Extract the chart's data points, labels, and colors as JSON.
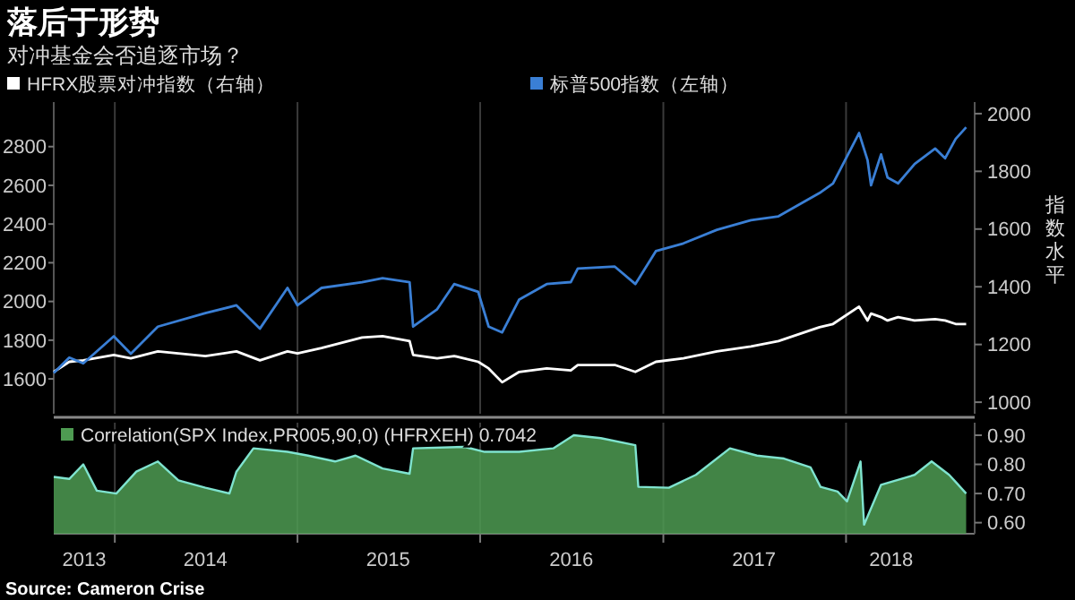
{
  "chart_data": [
    {
      "type": "line",
      "title": "落后于形势",
      "subtitle": "对冲基金会否追逐市场？",
      "y2label": "指数水平",
      "legend": "top",
      "grid": "x",
      "tick_labels": "y",
      "x": [
        "2013-09-01",
        "2013-10-02",
        "2013-10-30",
        "2013-12-30",
        "2014-02-02",
        "2014-03-28",
        "2014-07-01",
        "2014-09-01",
        "2014-10-18",
        "2014-12-12",
        "2015-01-01",
        "2015-02-18",
        "2015-05-10",
        "2015-06-20",
        "2015-08-13",
        "2015-08-20",
        "2015-10-07",
        "2015-11-10",
        "2015-12-28",
        "2016-01-18",
        "2016-02-14",
        "2016-03-19",
        "2016-05-13",
        "2016-06-30",
        "2016-07-14",
        "2016-09-26",
        "2016-11-06",
        "2016-12-17",
        "2017-02-10",
        "2017-04-18",
        "2017-06-25",
        "2017-08-19",
        "2017-11-09",
        "2017-12-06",
        "2018-01-27",
        "2018-02-13",
        "2018-02-20",
        "2018-03-12",
        "2018-03-25",
        "2018-04-15",
        "2018-05-18",
        "2018-06-28",
        "2018-07-18",
        "2018-08-08",
        "2018-08-29"
      ],
      "xlim": [
        "2013-09-01",
        "2018-09-15"
      ],
      "xticks": [
        {
          "value": "2014-01-01",
          "label": null
        },
        {
          "value": "2015-01-01",
          "label": null
        },
        {
          "value": "2016-01-01",
          "label": null
        },
        {
          "value": "2017-01-01",
          "label": null
        },
        {
          "value": "2018-01-01",
          "label": null
        }
      ],
      "ylim": [
        1420,
        3030
      ],
      "yticks": [
        1600,
        1800,
        2000,
        2200,
        2400,
        2600,
        2800
      ],
      "y2lim": [
        960,
        2040
      ],
      "y2ticks": [
        1000,
        1200,
        1400,
        1600,
        1800,
        2000
      ],
      "series": [
        {
          "name": "HFRX股票对冲指数（右轴）",
          "color": "#ffffff",
          "axis": "y2",
          "values": [
            1105,
            1140,
            1145,
            1164,
            1152,
            1176,
            1160,
            1176,
            1145,
            1176,
            1169,
            1188,
            1224,
            1229,
            1212,
            1164,
            1152,
            1160,
            1140,
            1117,
            1069,
            1105,
            1117,
            1110,
            1129,
            1129,
            1105,
            1140,
            1152,
            1176,
            1193,
            1212,
            1260,
            1271,
            1331,
            1283,
            1307,
            1295,
            1283,
            1295,
            1283,
            1288,
            1283,
            1271,
            1271
          ]
        },
        {
          "name": "标普500指数（左轴）",
          "color": "#3a7fd5",
          "axis": "y",
          "values": [
            1630,
            1710,
            1680,
            1820,
            1730,
            1870,
            1940,
            1980,
            1860,
            2070,
            1980,
            2070,
            2100,
            2120,
            2100,
            1870,
            1960,
            2090,
            2050,
            1870,
            1840,
            2010,
            2090,
            2100,
            2170,
            2180,
            2090,
            2260,
            2300,
            2370,
            2420,
            2440,
            2560,
            2610,
            2870,
            2730,
            2600,
            2760,
            2640,
            2610,
            2710,
            2790,
            2740,
            2840,
            2900
          ]
        }
      ]
    },
    {
      "type": "area",
      "legend": "top left",
      "grid": "x",
      "annotations": [
        "Source: Cameron Crise"
      ],
      "xlim": [
        "2013-09-01",
        "2018-09-15"
      ],
      "xticks": [
        {
          "value": "2013-11-01",
          "label": "2013"
        },
        {
          "value": "2014-01-01",
          "label": null
        },
        {
          "value": "2014-07-01",
          "label": "2014"
        },
        {
          "value": "2015-01-01",
          "label": null
        },
        {
          "value": "2015-07-01",
          "label": "2015"
        },
        {
          "value": "2016-01-01",
          "label": null
        },
        {
          "value": "2016-07-01",
          "label": "2016"
        },
        {
          "value": "2017-01-01",
          "label": null
        },
        {
          "value": "2017-07-01",
          "label": "2017"
        },
        {
          "value": "2018-01-01",
          "label": null
        },
        {
          "value": "2018-04-01",
          "label": "2018"
        }
      ],
      "y2lim": [
        0.562,
        0.943
      ],
      "y2ticks": [
        {
          "value": 0.6,
          "label": "0.60"
        },
        {
          "value": 0.7,
          "label": "0.70"
        },
        {
          "value": 0.8,
          "label": "0.80"
        },
        {
          "value": 0.9,
          "label": "0.90"
        }
      ],
      "series": [
        {
          "name": "Correlation(SPX Index,PR005,90,0) (HFRXEH) 0.7042",
          "color": "#4e9b52",
          "axis": "y2",
          "x": [
            "2013-09-01",
            "2013-10-02",
            "2013-10-30",
            "2013-11-26",
            "2014-01-04",
            "2014-02-13",
            "2014-03-28",
            "2014-05-08",
            "2014-07-01",
            "2014-08-18",
            "2014-09-01",
            "2014-10-05",
            "2014-12-12",
            "2015-01-22",
            "2015-03-17",
            "2015-04-27",
            "2015-06-20",
            "2015-08-13",
            "2015-08-20",
            "2015-12-01",
            "2016-01-10",
            "2016-03-19",
            "2016-05-26",
            "2016-07-06",
            "2016-08-29",
            "2016-11-06",
            "2016-11-12",
            "2017-01-12",
            "2017-03-07",
            "2017-05-14",
            "2017-07-07",
            "2017-08-30",
            "2017-10-22",
            "2017-11-11",
            "2017-12-15",
            "2018-01-03",
            "2018-01-30",
            "2018-02-06",
            "2018-03-12",
            "2018-05-18",
            "2018-06-21",
            "2018-07-26",
            "2018-08-08",
            "2018-08-29"
          ],
          "values": [
            0.757,
            0.75,
            0.8,
            0.71,
            0.7,
            0.775,
            0.81,
            0.745,
            0.72,
            0.7,
            0.775,
            0.855,
            0.843,
            0.83,
            0.81,
            0.83,
            0.786,
            0.768,
            0.855,
            0.86,
            0.843,
            0.843,
            0.855,
            0.9,
            0.89,
            0.866,
            0.723,
            0.72,
            0.764,
            0.855,
            0.83,
            0.82,
            0.79,
            0.723,
            0.707,
            0.673,
            0.81,
            0.593,
            0.73,
            0.764,
            0.81,
            0.764,
            0.74,
            0.7
          ]
        }
      ]
    }
  ]
}
